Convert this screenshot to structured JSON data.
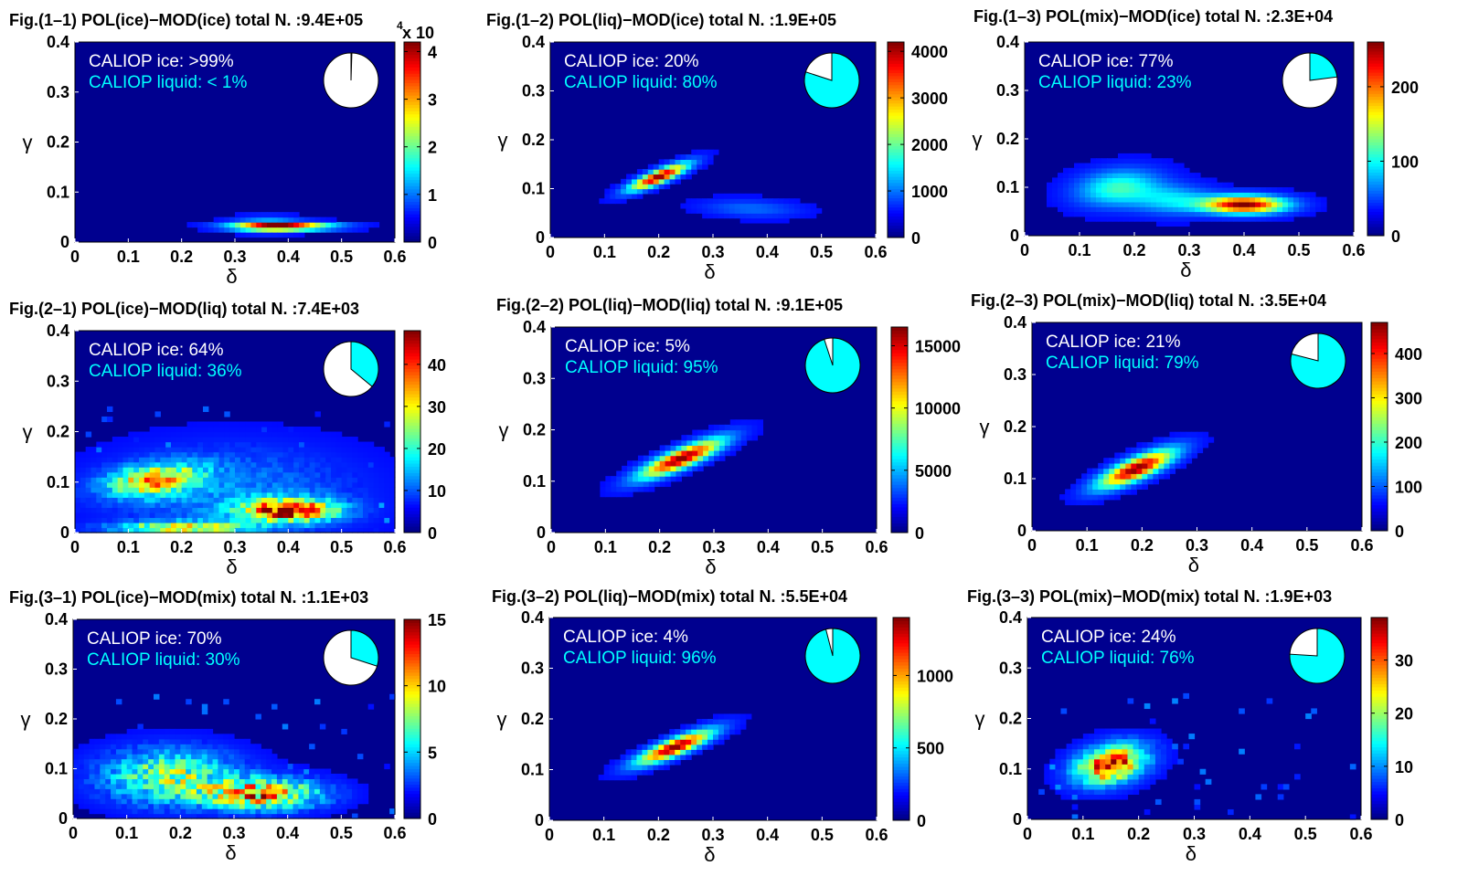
{
  "chart_data": [
    {
      "type": "heatmap",
      "title": "Fig.(1–1)     POL(ice)−MOD(ice)   total N. :9.4E+05",
      "xlabel": "δ",
      "ylabel": "γ",
      "xlim": [
        0,
        0.6
      ],
      "ylim": [
        0,
        0.4
      ],
      "xticks": [
        "0",
        "0.1",
        "0.2",
        "0.3",
        "0.4",
        "0.5",
        "0.6"
      ],
      "yticks": [
        "0",
        "0.1",
        "0.2",
        "0.3",
        "0.4"
      ],
      "colorbar": {
        "min": 0,
        "max": 4.2,
        "ticks": [
          {
            "v": 0,
            "label": "0"
          },
          {
            "v": 1,
            "label": "1"
          },
          {
            "v": 2,
            "label": "2"
          },
          {
            "v": 3,
            "label": "3"
          },
          {
            "v": 4,
            "label": "4"
          }
        ],
        "exponent": "x 10",
        "exponent_power": "4"
      },
      "annotation": {
        "ice_label": "CALIOP ice: >99%",
        "liquid_label": "CALIOP liquid: < 1%"
      },
      "pie": {
        "ice": 99.5,
        "liquid": 0.5
      },
      "blobs": [
        {
          "x": 0.39,
          "y": 0.032,
          "sx": 0.06,
          "sy": 0.005,
          "rho": 0,
          "a": 1.0
        },
        {
          "x": 0.36,
          "y": 0.035,
          "sx": 0.04,
          "sy": 0.01,
          "rho": 0,
          "a": 0.25
        }
      ]
    },
    {
      "type": "heatmap",
      "title": "Fig.(1–2)     POL(liq)−MOD(ice)   total N. :1.9E+05",
      "xlabel": "δ",
      "ylabel": "γ",
      "xlim": [
        0,
        0.6
      ],
      "ylim": [
        0,
        0.4
      ],
      "xticks": [
        "0",
        "0.1",
        "0.2",
        "0.3",
        "0.4",
        "0.5",
        "0.6"
      ],
      "yticks": [
        "0",
        "0.1",
        "0.2",
        "0.3",
        "0.4"
      ],
      "colorbar": {
        "min": 0,
        "max": 4200,
        "ticks": [
          {
            "v": 0,
            "label": "0"
          },
          {
            "v": 1000,
            "label": "1000"
          },
          {
            "v": 2000,
            "label": "2000"
          },
          {
            "v": 3000,
            "label": "3000"
          },
          {
            "v": 4000,
            "label": "4000"
          }
        ]
      },
      "annotation": {
        "ice_label": "CALIOP ice: 20%",
        "liquid_label": "CALIOP liquid: 80%"
      },
      "pie": {
        "ice": 20,
        "liquid": 80
      },
      "blobs": [
        {
          "x": 0.2,
          "y": 0.125,
          "sx": 0.035,
          "sy": 0.018,
          "rho": 0.85,
          "a": 1.0
        },
        {
          "x": 0.37,
          "y": 0.06,
          "sx": 0.06,
          "sy": 0.012,
          "rho": -0.2,
          "a": 0.12
        }
      ]
    },
    {
      "type": "heatmap",
      "title": "Fig.(1–3)     POL(mix)−MOD(ice)   total N. :2.3E+04",
      "xlabel": "δ",
      "ylabel": "γ",
      "xlim": [
        0,
        0.6
      ],
      "ylim": [
        0,
        0.4
      ],
      "xticks": [
        "0",
        "0.1",
        "0.2",
        "0.3",
        "0.4",
        "0.5",
        "0.6"
      ],
      "yticks": [
        "0",
        "0.1",
        "0.2",
        "0.3",
        "0.4"
      ],
      "colorbar": {
        "min": 0,
        "max": 260,
        "ticks": [
          {
            "v": 0,
            "label": "0"
          },
          {
            "v": 100,
            "label": "100"
          },
          {
            "v": 200,
            "label": "200"
          }
        ]
      },
      "annotation": {
        "ice_label": "CALIOP ice: 77%",
        "liquid_label": "CALIOP liquid: 23%"
      },
      "pie": {
        "ice": 77,
        "liquid": 23
      },
      "blobs": [
        {
          "x": 0.4,
          "y": 0.065,
          "sx": 0.05,
          "sy": 0.012,
          "rho": 0,
          "a": 1.0
        },
        {
          "x": 0.17,
          "y": 0.1,
          "sx": 0.05,
          "sy": 0.025,
          "rho": 0.2,
          "a": 0.35
        },
        {
          "x": 0.27,
          "y": 0.075,
          "sx": 0.05,
          "sy": 0.02,
          "rho": 0,
          "a": 0.25
        }
      ]
    },
    {
      "type": "heatmap",
      "title": "Fig.(2–1)     POL(ice)−MOD(liq)   total N. :7.4E+03",
      "xlabel": "δ",
      "ylabel": "γ",
      "xlim": [
        0,
        0.6
      ],
      "ylim": [
        0,
        0.4
      ],
      "xticks": [
        "0",
        "0.1",
        "0.2",
        "0.3",
        "0.4",
        "0.5",
        "0.6"
      ],
      "yticks": [
        "0",
        "0.1",
        "0.2",
        "0.3",
        "0.4"
      ],
      "colorbar": {
        "min": 0,
        "max": 48,
        "ticks": [
          {
            "v": 0,
            "label": "0"
          },
          {
            "v": 10,
            "label": "10"
          },
          {
            "v": 20,
            "label": "20"
          },
          {
            "v": 30,
            "label": "30"
          },
          {
            "v": 40,
            "label": "40"
          }
        ]
      },
      "annotation": {
        "ice_label": "CALIOP ice: 64%",
        "liquid_label": "CALIOP liquid: 36%"
      },
      "pie": {
        "ice": 64,
        "liquid": 36
      },
      "blobs": [
        {
          "x": 0.4,
          "y": 0.045,
          "sx": 0.06,
          "sy": 0.015,
          "rho": 0,
          "a": 0.9
        },
        {
          "x": 0.15,
          "y": 0.105,
          "sx": 0.06,
          "sy": 0.022,
          "rho": 0.3,
          "a": 0.6
        },
        {
          "x": 0.2,
          "y": 0.01,
          "sx": 0.08,
          "sy": 0.008,
          "rho": 0,
          "a": 0.6
        },
        {
          "x": 0.3,
          "y": 0.08,
          "sx": 0.15,
          "sy": 0.06,
          "rho": 0,
          "a": 0.15
        }
      ],
      "noise": 0.35
    },
    {
      "type": "heatmap",
      "title": "Fig.(2–2)     POL(liq)−MOD(liq)   total N. :9.1E+05",
      "xlabel": "δ",
      "ylabel": "γ",
      "xlim": [
        0,
        0.6
      ],
      "ylim": [
        0,
        0.4
      ],
      "xticks": [
        "0",
        "0.1",
        "0.2",
        "0.3",
        "0.4",
        "0.5",
        "0.6"
      ],
      "yticks": [
        "0",
        "0.1",
        "0.2",
        "0.3",
        "0.4"
      ],
      "colorbar": {
        "min": 0,
        "max": 16500,
        "ticks": [
          {
            "v": 0,
            "label": "0"
          },
          {
            "v": 5000,
            "label": "5000"
          },
          {
            "v": 10000,
            "label": "10000"
          },
          {
            "v": 15000,
            "label": "15000"
          }
        ]
      },
      "annotation": {
        "ice_label": "CALIOP ice: 5%",
        "liquid_label": "CALIOP liquid: 95%"
      },
      "pie": {
        "ice": 5,
        "liquid": 95
      },
      "blobs": [
        {
          "x": 0.24,
          "y": 0.145,
          "sx": 0.05,
          "sy": 0.025,
          "rho": 0.85,
          "a": 1.0
        }
      ]
    },
    {
      "type": "heatmap",
      "title": "Fig.(2–3)     POL(mix)−MOD(liq)   total N. :3.5E+04",
      "xlabel": "δ",
      "ylabel": "γ",
      "xlim": [
        0,
        0.6
      ],
      "ylim": [
        0,
        0.4
      ],
      "xticks": [
        "0",
        "0.1",
        "0.2",
        "0.3",
        "0.4",
        "0.5",
        "0.6"
      ],
      "yticks": [
        "0",
        "0.1",
        "0.2",
        "0.3",
        "0.4"
      ],
      "colorbar": {
        "min": 0,
        "max": 470,
        "ticks": [
          {
            "v": 0,
            "label": "0"
          },
          {
            "v": 100,
            "label": "100"
          },
          {
            "v": 200,
            "label": "200"
          },
          {
            "v": 300,
            "label": "300"
          },
          {
            "v": 400,
            "label": "400"
          }
        ]
      },
      "annotation": {
        "ice_label": "CALIOP ice: 21%",
        "liquid_label": "CALIOP liquid: 79%"
      },
      "pie": {
        "ice": 21,
        "liquid": 79
      },
      "blobs": [
        {
          "x": 0.19,
          "y": 0.12,
          "sx": 0.045,
          "sy": 0.024,
          "rho": 0.8,
          "a": 1.0
        }
      ]
    },
    {
      "type": "heatmap",
      "title": "Fig.(3–1)     POL(ice)−MOD(mix)   total N. :1.1E+03",
      "xlabel": "δ",
      "ylabel": "γ",
      "xlim": [
        0,
        0.6
      ],
      "ylim": [
        0,
        0.4
      ],
      "xticks": [
        "0",
        "0.1",
        "0.2",
        "0.3",
        "0.4",
        "0.5",
        "0.6"
      ],
      "yticks": [
        "0",
        "0.1",
        "0.2",
        "0.3",
        "0.4"
      ],
      "colorbar": {
        "min": 0,
        "max": 15,
        "ticks": [
          {
            "v": 0,
            "label": "0"
          },
          {
            "v": 5,
            "label": "5"
          },
          {
            "v": 10,
            "label": "10"
          },
          {
            "v": 15,
            "label": "15"
          }
        ]
      },
      "annotation": {
        "ice_label": "CALIOP ice: 70%",
        "liquid_label": "CALIOP liquid: 30%"
      },
      "pie": {
        "ice": 70,
        "liquid": 30
      },
      "blobs": [
        {
          "x": 0.35,
          "y": 0.05,
          "sx": 0.07,
          "sy": 0.02,
          "rho": 0,
          "a": 0.7
        },
        {
          "x": 0.18,
          "y": 0.085,
          "sx": 0.08,
          "sy": 0.035,
          "rho": 0,
          "a": 0.45
        }
      ],
      "noise": 0.5
    },
    {
      "type": "heatmap",
      "title": "Fig.(3–2)     POL(liq)−MOD(mix)   total N. :5.5E+04",
      "xlabel": "δ",
      "ylabel": "γ",
      "xlim": [
        0,
        0.6
      ],
      "ylim": [
        0,
        0.4
      ],
      "xticks": [
        "0",
        "0.1",
        "0.2",
        "0.3",
        "0.4",
        "0.5",
        "0.6"
      ],
      "yticks": [
        "0",
        "0.1",
        "0.2",
        "0.3",
        "0.4"
      ],
      "colorbar": {
        "min": 0,
        "max": 1400,
        "ticks": [
          {
            "v": 0,
            "label": "0"
          },
          {
            "v": 500,
            "label": "500"
          },
          {
            "v": 1000,
            "label": "1000"
          }
        ]
      },
      "annotation": {
        "ice_label": "CALIOP ice: 4%",
        "liquid_label": "CALIOP liquid: 96%"
      },
      "pie": {
        "ice": 4,
        "liquid": 96
      },
      "blobs": [
        {
          "x": 0.23,
          "y": 0.145,
          "sx": 0.045,
          "sy": 0.022,
          "rho": 0.85,
          "a": 1.0
        }
      ]
    },
    {
      "type": "heatmap",
      "title": "Fig.(3–3)     POL(mix)−MOD(mix)   total N. :1.9E+03",
      "xlabel": "δ",
      "ylabel": "γ",
      "xlim": [
        0,
        0.6
      ],
      "ylim": [
        0,
        0.4
      ],
      "xticks": [
        "0",
        "0.1",
        "0.2",
        "0.3",
        "0.4",
        "0.5",
        "0.6"
      ],
      "yticks": [
        "0",
        "0.1",
        "0.2",
        "0.3",
        "0.4"
      ],
      "colorbar": {
        "min": 0,
        "max": 38,
        "ticks": [
          {
            "v": 0,
            "label": "0"
          },
          {
            "v": 10,
            "label": "10"
          },
          {
            "v": 20,
            "label": "20"
          },
          {
            "v": 30,
            "label": "30"
          }
        ]
      },
      "annotation": {
        "ice_label": "CALIOP ice: 24%",
        "liquid_label": "CALIOP liquid: 76%"
      },
      "pie": {
        "ice": 24,
        "liquid": 76
      },
      "blobs": [
        {
          "x": 0.15,
          "y": 0.11,
          "sx": 0.04,
          "sy": 0.025,
          "rho": 0.3,
          "a": 0.9
        }
      ],
      "noise": 0.3
    }
  ],
  "colors": {
    "background": "#00008f",
    "ice_text": "#ffffff",
    "liquid_text": "#00ffff",
    "pie_ice": "#ffffff",
    "pie_liquid": "#00ffff"
  }
}
